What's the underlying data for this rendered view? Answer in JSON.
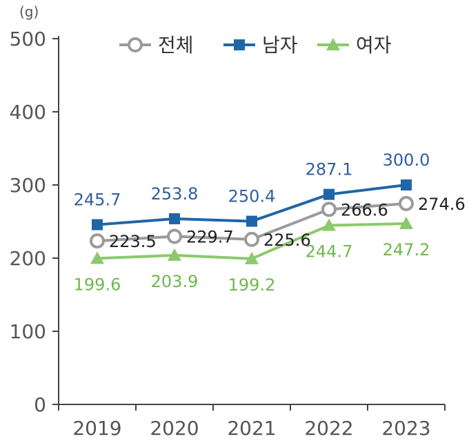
{
  "chart_data": {
    "type": "line",
    "unit_label": "(g)",
    "categories": [
      "2019",
      "2020",
      "2021",
      "2022",
      "2023"
    ],
    "y_ticks": [
      "0",
      "100",
      "200",
      "300",
      "400",
      "500"
    ],
    "ylim": [
      0,
      500
    ],
    "grid": false,
    "legend_position": "top",
    "series": [
      {
        "name": "전체",
        "values": [
          223.5,
          229.7,
          225.6,
          266.6,
          274.6
        ],
        "labels": [
          "223.5",
          "229.7",
          "225.6",
          "266.6",
          "274.6"
        ],
        "color": "#9b9b9b",
        "label_color": "#222222",
        "marker": "circle"
      },
      {
        "name": "남자",
        "values": [
          245.7,
          253.8,
          250.4,
          287.1,
          300.0
        ],
        "labels": [
          "245.7",
          "253.8",
          "250.4",
          "287.1",
          "300.0"
        ],
        "color": "#1f66a8",
        "label_color": "#2f5f9e",
        "marker": "square"
      },
      {
        "name": "여자",
        "values": [
          199.6,
          203.9,
          199.2,
          244.7,
          247.2
        ],
        "labels": [
          "199.6",
          "203.9",
          "199.2",
          "244.7",
          "247.2"
        ],
        "color": "#8cc96b",
        "label_color": "#6db84f",
        "marker": "triangle"
      }
    ]
  }
}
